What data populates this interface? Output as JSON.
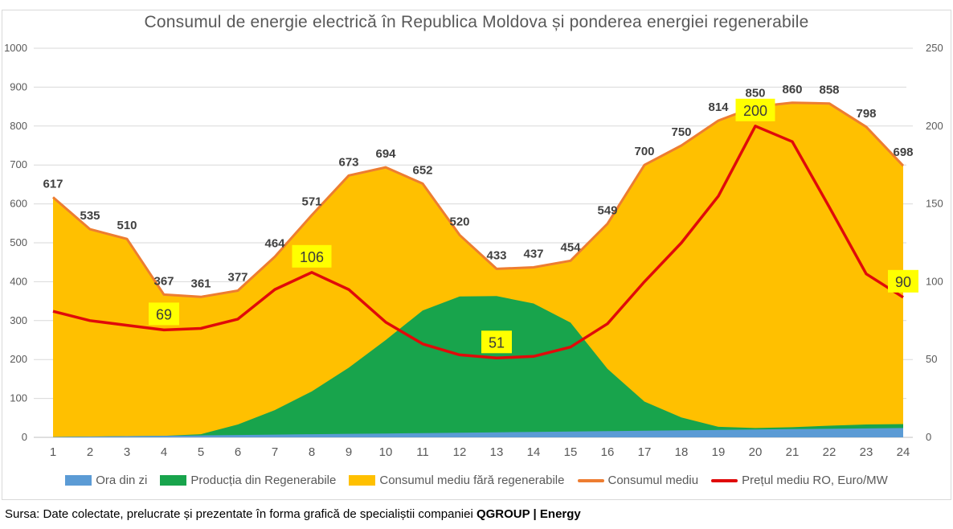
{
  "title": "Consumul de energie electrică în Republica Moldova și ponderea energiei regenerabile",
  "source": {
    "prefix": "Sursa: Date colectate, prelucrate și prezentate în forma grafică de specialiștii companiei ",
    "brand": "QGROUP | Energy"
  },
  "colors": {
    "hours_area": "#5B9BD5",
    "renewables_area": "#18A44C",
    "consumption_area": "#FFC000",
    "consumption_line": "#ED7D31",
    "price_line": "#E00A0A",
    "gridline": "#D9D9D9",
    "axis_line": "#BFBFBF",
    "data_label": "#404040",
    "price_label_bg": "#FFFF00",
    "axis_text": "#595959"
  },
  "legend": [
    {
      "label": "Ora din zi",
      "type": "area",
      "color": "#5B9BD5"
    },
    {
      "label": "Producția din Regenerabile",
      "type": "area",
      "color": "#18A44C"
    },
    {
      "label": "Consumul mediu fără regenerabile",
      "type": "area",
      "color": "#FFC000"
    },
    {
      "label": "Consumul mediu",
      "type": "line",
      "color": "#ED7D31"
    },
    {
      "label": "Prețul mediu RO, Euro/MW",
      "type": "line",
      "color": "#E00A0A"
    }
  ],
  "chart_data": {
    "type": "area",
    "title": "Consumul de energie electrică în Republica Moldova și ponderea energiei regenerabile",
    "x_hours": [
      1,
      2,
      3,
      4,
      5,
      6,
      7,
      8,
      9,
      10,
      11,
      12,
      13,
      14,
      15,
      16,
      17,
      18,
      19,
      20,
      21,
      22,
      23,
      24
    ],
    "left_axis": {
      "min": 0,
      "max": 1000,
      "step": 100
    },
    "right_axis": {
      "min": 0,
      "max": 250,
      "step": 50
    },
    "grid": true,
    "legend_position": "bottom",
    "series": [
      {
        "name": "Ora din zi",
        "kind": "stacked-area",
        "axis": "left",
        "values": [
          1,
          2,
          3,
          4,
          5,
          6,
          7,
          8,
          9,
          10,
          11,
          12,
          13,
          14,
          15,
          16,
          17,
          18,
          19,
          20,
          21,
          22,
          23,
          24
        ]
      },
      {
        "name": "Producția din Regenerabile",
        "kind": "stacked-area",
        "axis": "left",
        "values": [
          0,
          0,
          0,
          0,
          3,
          27,
          63,
          110,
          170,
          240,
          315,
          350,
          350,
          330,
          280,
          160,
          75,
          33,
          8,
          4,
          5,
          8,
          10,
          10
        ]
      },
      {
        "name": "Consumul mediu fără regenerabile",
        "kind": "stacked-area-to-total",
        "axis": "left",
        "note": "tops out at Consumul mediu"
      },
      {
        "name": "Consumul mediu",
        "kind": "line",
        "axis": "left",
        "labels_shown": true,
        "values": [
          617,
          535,
          510,
          367,
          361,
          377,
          464,
          571,
          673,
          694,
          652,
          520,
          433,
          437,
          454,
          549,
          700,
          750,
          814,
          850,
          860,
          858,
          798,
          698
        ]
      },
      {
        "name": "Prețul mediu RO, Euro/MW",
        "kind": "line",
        "axis": "right",
        "values": [
          81,
          75,
          72,
          69,
          70,
          76,
          95,
          106,
          95,
          74,
          60,
          53,
          51,
          52,
          58,
          73,
          100,
          125,
          155,
          200,
          190,
          148,
          105,
          90
        ],
        "labeled_points": [
          {
            "hour": 4,
            "value": 69
          },
          {
            "hour": 8,
            "value": 106
          },
          {
            "hour": 13,
            "value": 51
          },
          {
            "hour": 20,
            "value": 200
          },
          {
            "hour": 24,
            "value": 90
          }
        ]
      }
    ]
  }
}
